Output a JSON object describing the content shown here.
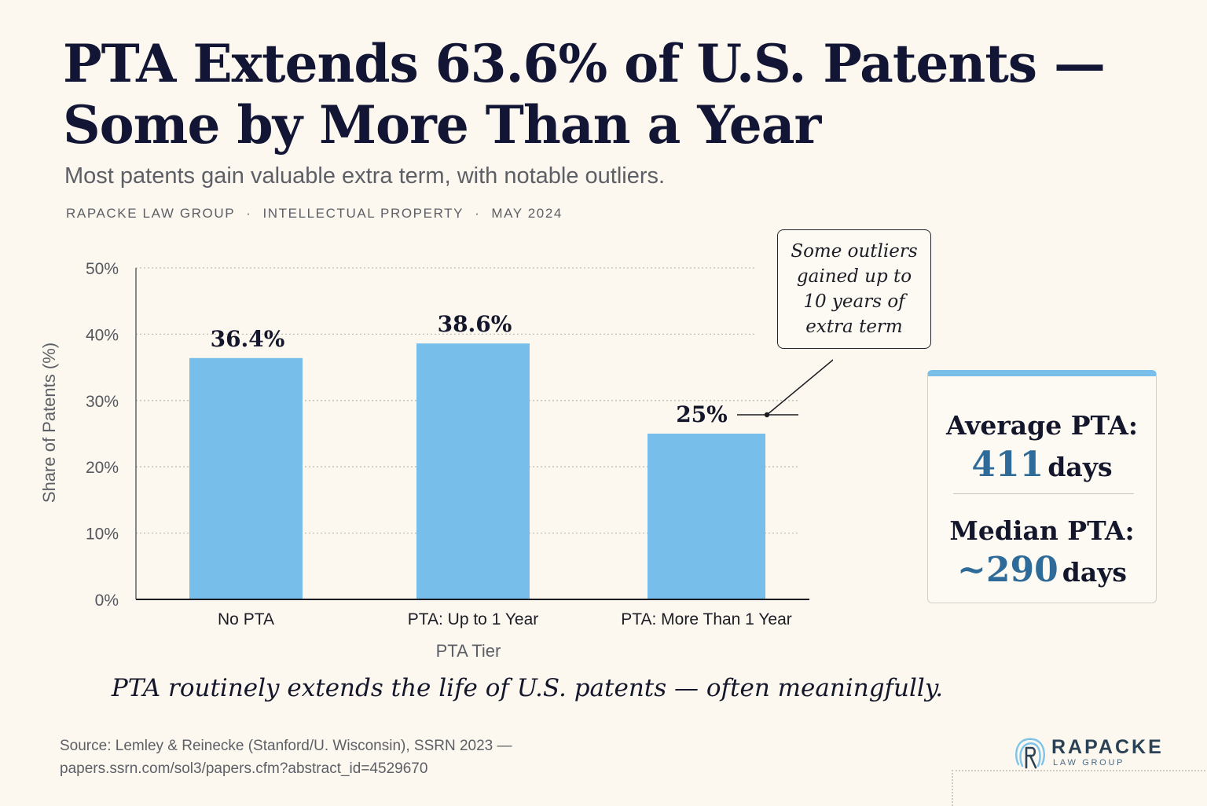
{
  "header": {
    "title_line1": "PTA Extends 63.6% of U.S. Patents —",
    "title_line2": "Some by More Than a Year",
    "subtitle": "Most patents gain valuable extra term, with notable outliers.",
    "meta": [
      "RAPACKE LAW GROUP",
      "INTELLECTUAL PROPERTY",
      "MAY 2024"
    ],
    "meta_separator": "·"
  },
  "chart_data": {
    "type": "bar",
    "categories": [
      "No PTA",
      "PTA: Up to 1 Year",
      "PTA: More Than 1 Year"
    ],
    "values": [
      36.4,
      38.6,
      25
    ],
    "data_labels": [
      "36.4%",
      "38.6%",
      "25%"
    ],
    "xlabel": "PTA Tier",
    "ylabel": "Share of Patents (%)",
    "ylim": [
      0,
      50
    ],
    "yticks": [
      0,
      10,
      20,
      30,
      40,
      50
    ],
    "ytick_labels": [
      "0%",
      "10%",
      "20%",
      "30%",
      "40%",
      "50%"
    ],
    "grid": true,
    "bar_color": "#77bfea",
    "annotation": {
      "text": "Some outliers gained up to 10 years of extra term",
      "target_category": "PTA: More Than 1 Year"
    }
  },
  "stats": {
    "avg_label": "Average PTA:",
    "avg_value": "411",
    "avg_unit": "days",
    "median_label": "Median PTA:",
    "median_value": "~290",
    "median_unit": "days",
    "accent_color": "#79bfe9"
  },
  "takeaway": "PTA routinely extends the life of U.S. patents — often meaningfully.",
  "source": {
    "line1": "Source: Lemley & Reinecke (Stanford/U. Wisconsin), SSRN 2023 —",
    "line2": "papers.ssrn.com/sol3/papers.cfm?abstract_id=4529670"
  },
  "logo": {
    "name": "RAPACKE",
    "sub": "LAW GROUP",
    "icon": "fingerprint-r-icon"
  }
}
